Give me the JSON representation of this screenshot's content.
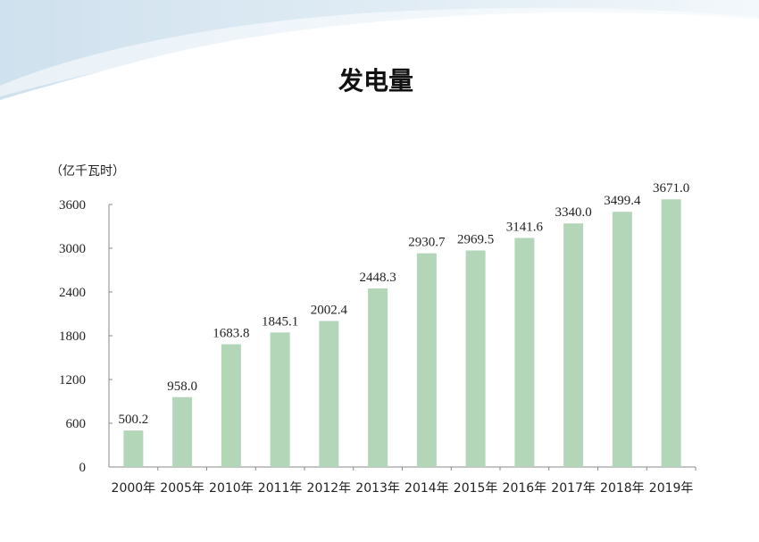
{
  "chart_data": {
    "type": "bar",
    "title": "发电量",
    "unit_label": "（亿千瓦时）",
    "categories": [
      "2000年",
      "2005年",
      "2010年",
      "2011年",
      "2012年",
      "2013年",
      "2014年",
      "2015年",
      "2016年",
      "2017年",
      "2018年",
      "2019年"
    ],
    "values": [
      500.2,
      958.0,
      1683.8,
      1845.1,
      2002.4,
      2448.3,
      2930.7,
      2969.5,
      3141.6,
      3340.0,
      3499.4,
      3671.0
    ],
    "value_labels": [
      "500.2",
      "958.0",
      "1683.8",
      "1845.1",
      "2002.4",
      "2448.3",
      "2930.7",
      "2969.5",
      "3141.6",
      "3340.0",
      "3499.4",
      "3671.0"
    ],
    "yticks": [
      0,
      600,
      1200,
      1800,
      2400,
      3000,
      3600
    ],
    "ylim": [
      0,
      3600
    ],
    "grid": false,
    "bar_color": "#b3d5b8",
    "axis_color": "#888888"
  },
  "decor": {
    "swoosh_color": "#dbe9f3",
    "swoosh_color_light": "#eef5fa"
  }
}
